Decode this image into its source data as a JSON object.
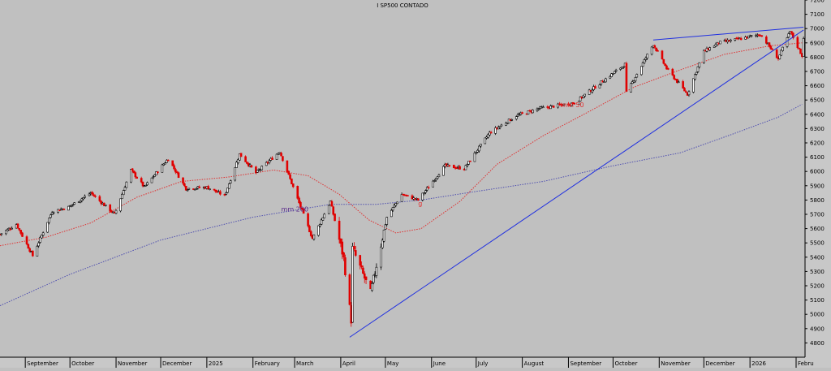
{
  "chart_data": {
    "type": "candlestick",
    "title": "I SP500 CONTADO",
    "ylim": [
      4700,
      7200
    ],
    "y_ticks": [
      4800,
      4900,
      5000,
      5100,
      5200,
      5300,
      5400,
      5500,
      5600,
      5700,
      5800,
      5900,
      6000,
      6100,
      6200,
      6300,
      6400,
      6500,
      6600,
      6700,
      6800,
      6900,
      7000,
      7100,
      7200
    ],
    "x_range": [
      "2024-08-15",
      "2026-02-07"
    ],
    "x_labels": [
      {
        "label": "September",
        "date": "2024-09-01"
      },
      {
        "label": "October",
        "date": "2024-10-01"
      },
      {
        "label": "November",
        "date": "2024-11-01"
      },
      {
        "label": "December",
        "date": "2024-12-01"
      },
      {
        "label": "2025",
        "date": "2025-01-01"
      },
      {
        "label": "February",
        "date": "2025-02-01"
      },
      {
        "label": "March",
        "date": "2025-03-01"
      },
      {
        "label": "April",
        "date": "2025-04-01"
      },
      {
        "label": "May",
        "date": "2025-05-01"
      },
      {
        "label": "June",
        "date": "2025-06-01"
      },
      {
        "label": "July",
        "date": "2025-07-01"
      },
      {
        "label": "August",
        "date": "2025-08-01"
      },
      {
        "label": "September",
        "date": "2025-09-01"
      },
      {
        "label": "October",
        "date": "2025-10-01"
      },
      {
        "label": "November",
        "date": "2025-11-01"
      },
      {
        "label": "December",
        "date": "2025-12-01"
      },
      {
        "label": "2026",
        "date": "2026-01-01"
      },
      {
        "label": "Febru",
        "date": "2026-02-01"
      }
    ],
    "grid": false,
    "series": [
      {
        "name": "mm 50",
        "color": "#e03030",
        "style": "dotted",
        "points": [
          [
            "2024-08-15",
            5480
          ],
          [
            "2024-09-15",
            5540
          ],
          [
            "2024-10-15",
            5640
          ],
          [
            "2024-11-15",
            5820
          ],
          [
            "2024-12-15",
            5930
          ],
          [
            "2025-01-15",
            5960
          ],
          [
            "2025-02-15",
            6010
          ],
          [
            "2025-03-10",
            5970
          ],
          [
            "2025-03-31",
            5840
          ],
          [
            "2025-04-20",
            5660
          ],
          [
            "2025-05-08",
            5570
          ],
          [
            "2025-05-25",
            5600
          ],
          [
            "2025-06-20",
            5790
          ],
          [
            "2025-07-15",
            6050
          ],
          [
            "2025-08-15",
            6250
          ],
          [
            "2025-09-15",
            6420
          ],
          [
            "2025-10-15",
            6590
          ],
          [
            "2025-11-15",
            6710
          ],
          [
            "2025-12-15",
            6820
          ],
          [
            "2026-01-15",
            6880
          ],
          [
            "2026-02-05",
            6900
          ]
        ]
      },
      {
        "name": "mm 200",
        "color": "#5050b0",
        "style": "dotted",
        "points": [
          [
            "2024-08-15",
            5060
          ],
          [
            "2024-10-01",
            5280
          ],
          [
            "2024-12-01",
            5520
          ],
          [
            "2025-02-01",
            5680
          ],
          [
            "2025-03-25",
            5770
          ],
          [
            "2025-04-25",
            5770
          ],
          [
            "2025-05-25",
            5800
          ],
          [
            "2025-07-01",
            5860
          ],
          [
            "2025-08-15",
            5930
          ],
          [
            "2025-10-01",
            6040
          ],
          [
            "2025-11-15",
            6130
          ],
          [
            "2025-12-20",
            6260
          ],
          [
            "2026-01-20",
            6380
          ],
          [
            "2026-02-05",
            6470
          ]
        ]
      },
      {
        "name": "price",
        "color": "#000000",
        "style": "candles",
        "points": [
          [
            "2024-08-15",
            5560
          ],
          [
            "2024-08-26",
            5630
          ],
          [
            "2024-09-06",
            5410
          ],
          [
            "2024-09-19",
            5720
          ],
          [
            "2024-09-30",
            5750
          ],
          [
            "2024-10-15",
            5850
          ],
          [
            "2024-10-31",
            5700
          ],
          [
            "2024-11-11",
            6010
          ],
          [
            "2024-11-20",
            5890
          ],
          [
            "2024-12-06",
            6090
          ],
          [
            "2024-12-18",
            5880
          ],
          [
            "2025-01-01",
            5890
          ],
          [
            "2025-01-13",
            5830
          ],
          [
            "2025-01-23",
            6120
          ],
          [
            "2025-02-03",
            5990
          ],
          [
            "2025-02-19",
            6140
          ],
          [
            "2025-03-13",
            5530
          ],
          [
            "2025-03-25",
            5790
          ],
          [
            "2025-04-03",
            5390
          ],
          [
            "2025-04-08",
            4960
          ],
          [
            "2025-04-09",
            5460
          ],
          [
            "2025-04-21",
            5150
          ],
          [
            "2025-05-02",
            5680
          ],
          [
            "2025-05-12",
            5840
          ],
          [
            "2025-05-23",
            5800
          ],
          [
            "2025-06-10",
            6040
          ],
          [
            "2025-06-23",
            6020
          ],
          [
            "2025-07-10",
            6270
          ],
          [
            "2025-07-28",
            6390
          ],
          [
            "2025-08-12",
            6440
          ],
          [
            "2025-09-05",
            6480
          ],
          [
            "2025-09-25",
            6640
          ],
          [
            "2025-10-09",
            6750
          ],
          [
            "2025-10-10",
            6550
          ],
          [
            "2025-10-28",
            6890
          ],
          [
            "2025-11-06",
            6720
          ],
          [
            "2025-11-20",
            6540
          ],
          [
            "2025-12-01",
            6840
          ],
          [
            "2025-12-11",
            6900
          ],
          [
            "2025-12-26",
            6930
          ],
          [
            "2026-01-08",
            6960
          ],
          [
            "2026-01-20",
            6790
          ],
          [
            "2026-01-28",
            6980
          ],
          [
            "2026-02-05",
            6810
          ],
          [
            "2026-02-06",
            6940
          ]
        ]
      },
      {
        "name": "support-line",
        "color": "#2030e0",
        "style": "line",
        "points": [
          [
            "2025-04-07",
            4840
          ],
          [
            "2026-02-06",
            6990
          ]
        ]
      },
      {
        "name": "resistance-line",
        "color": "#2030e0",
        "style": "line",
        "points": [
          [
            "2025-10-28",
            6920
          ],
          [
            "2026-02-06",
            7010
          ]
        ]
      }
    ],
    "annotations": [
      {
        "text": "mm 50",
        "x": "2025-08-27",
        "y": 6450,
        "color": "#e03030"
      },
      {
        "text": "mm 200",
        "x": "2025-02-20",
        "y": 5720,
        "color": "#5a2a8a"
      },
      {
        "text": "g",
        "x": "2025-05-23",
        "y": 5760,
        "color": "#e03030"
      }
    ]
  }
}
